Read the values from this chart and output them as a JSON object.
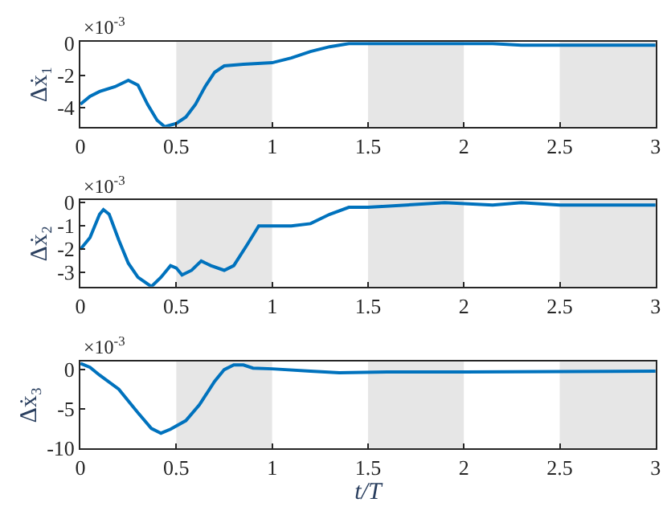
{
  "chart_data": [
    {
      "type": "line",
      "ylabel": "Δẋ₁",
      "annotations": [
        "×10$^{-3}$"
      ],
      "xlim": [
        0,
        3
      ],
      "xticks": [
        0,
        0.5,
        1,
        1.5,
        2,
        2.5,
        3
      ],
      "ylim": [
        -5.2,
        0.1
      ],
      "yticks": [
        -4,
        -2,
        0
      ],
      "grid": false,
      "bands": [
        {
          "axis": "x",
          "from": 0.5,
          "to": 1,
          "color": "#e6e6e6"
        },
        {
          "axis": "x",
          "from": 1.5,
          "to": 2,
          "color": "#e6e6e6"
        },
        {
          "axis": "x",
          "from": 2.5,
          "to": 3,
          "color": "#e6e6e6"
        }
      ],
      "series": [
        {
          "color": "#0072bd",
          "x": [
            0,
            0.05,
            0.1,
            0.18,
            0.25,
            0.3,
            0.35,
            0.4,
            0.44,
            0.5,
            0.55,
            0.6,
            0.65,
            0.7,
            0.75,
            0.85,
            1,
            1.1,
            1.2,
            1.3,
            1.4,
            1.7,
            2,
            2.15,
            2.3,
            2.5,
            3
          ],
          "values": [
            -3.8,
            -3.3,
            -3.0,
            -2.7,
            -2.3,
            -2.6,
            -3.8,
            -4.8,
            -5.2,
            -5.0,
            -4.6,
            -3.8,
            -2.7,
            -1.8,
            -1.4,
            -1.3,
            -1.2,
            -0.9,
            -0.5,
            -0.2,
            0,
            0,
            0,
            0,
            -0.1,
            -0.1,
            -0.1
          ]
        }
      ]
    },
    {
      "type": "line",
      "ylabel": "Δẋ₂",
      "annotations": [
        "×10$^{-3}$"
      ],
      "xlim": [
        0,
        3
      ],
      "xticks": [
        0,
        0.5,
        1,
        1.5,
        2,
        2.5,
        3
      ],
      "ylim": [
        -3.6,
        0.1
      ],
      "yticks": [
        -3,
        -2,
        -1,
        0
      ],
      "grid": false,
      "bands": [
        {
          "axis": "x",
          "from": 0.5,
          "to": 1,
          "color": "#e6e6e6"
        },
        {
          "axis": "x",
          "from": 1.5,
          "to": 2,
          "color": "#e6e6e6"
        },
        {
          "axis": "x",
          "from": 2.5,
          "to": 3,
          "color": "#e6e6e6"
        }
      ],
      "series": [
        {
          "color": "#0072bd",
          "x": [
            0,
            0.05,
            0.1,
            0.12,
            0.15,
            0.2,
            0.25,
            0.3,
            0.37,
            0.42,
            0.47,
            0.5,
            0.53,
            0.58,
            0.63,
            0.68,
            0.75,
            0.8,
            0.87,
            0.93,
            1,
            1.1,
            1.2,
            1.3,
            1.4,
            1.5,
            1.7,
            1.9,
            2.15,
            2.3,
            2.5,
            3
          ],
          "values": [
            -2.0,
            -1.5,
            -0.5,
            -0.3,
            -0.5,
            -1.6,
            -2.6,
            -3.2,
            -3.6,
            -3.2,
            -2.7,
            -2.8,
            -3.1,
            -2.9,
            -2.5,
            -2.7,
            -2.9,
            -2.7,
            -1.8,
            -1.0,
            -1.0,
            -1.0,
            -0.9,
            -0.5,
            -0.2,
            -0.2,
            -0.1,
            0,
            -0.1,
            0,
            -0.1,
            -0.1
          ]
        }
      ]
    },
    {
      "type": "line",
      "ylabel": "Δẋ₃",
      "xlabel": "t/T",
      "annotations": [
        "×10$^{-3}$"
      ],
      "xlim": [
        0,
        3
      ],
      "xticks": [
        0,
        0.5,
        1,
        1.5,
        2,
        2.5,
        3
      ],
      "ylim": [
        -10,
        1
      ],
      "yticks": [
        -10,
        -5,
        0
      ],
      "grid": false,
      "bands": [
        {
          "axis": "x",
          "from": 0.5,
          "to": 1,
          "color": "#e6e6e6"
        },
        {
          "axis": "x",
          "from": 1.5,
          "to": 2,
          "color": "#e6e6e6"
        },
        {
          "axis": "x",
          "from": 2.5,
          "to": 3,
          "color": "#e6e6e6"
        }
      ],
      "series": [
        {
          "color": "#0072bd",
          "x": [
            0,
            0.05,
            0.1,
            0.2,
            0.3,
            0.37,
            0.42,
            0.47,
            0.55,
            0.62,
            0.7,
            0.75,
            0.8,
            0.85,
            0.9,
            1,
            1.2,
            1.35,
            1.6,
            2,
            3
          ],
          "values": [
            0.8,
            0.3,
            -0.7,
            -2.5,
            -5.5,
            -7.5,
            -8.1,
            -7.6,
            -6.5,
            -4.5,
            -1.5,
            0,
            0.6,
            0.6,
            0.2,
            0.1,
            -0.2,
            -0.4,
            -0.3,
            -0.3,
            -0.2
          ]
        }
      ]
    }
  ]
}
